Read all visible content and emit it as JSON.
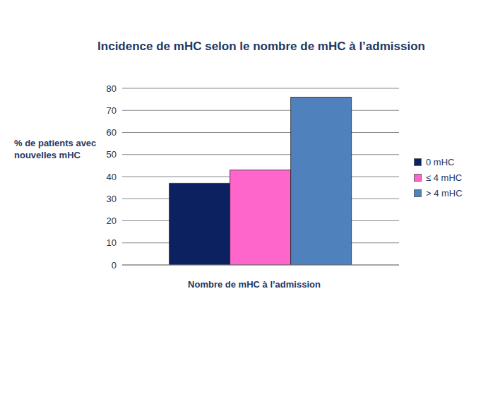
{
  "chart_data": {
    "type": "bar",
    "title": "Incidence de mHC selon le nombre de mHC à l’admission",
    "x_label": "Nombre de mHC à l’admission",
    "y_label": "% de patients avec nouvelles mHC",
    "categories": [
      null
    ],
    "series": [
      {
        "name": "0 mHC",
        "color": "#0b2160",
        "values": [
          37
        ]
      },
      {
        "name": "≤ 4 mHC",
        "color": "#ff66cc",
        "values": [
          43
        ]
      },
      {
        "name": "> 4 mHC",
        "color": "#4f81bd",
        "values": [
          76
        ]
      }
    ],
    "ylim": [
      0,
      80
    ],
    "yticks": [
      0,
      10,
      20,
      30,
      40,
      50,
      60,
      70,
      80
    ],
    "grid": true,
    "legend": "right"
  }
}
